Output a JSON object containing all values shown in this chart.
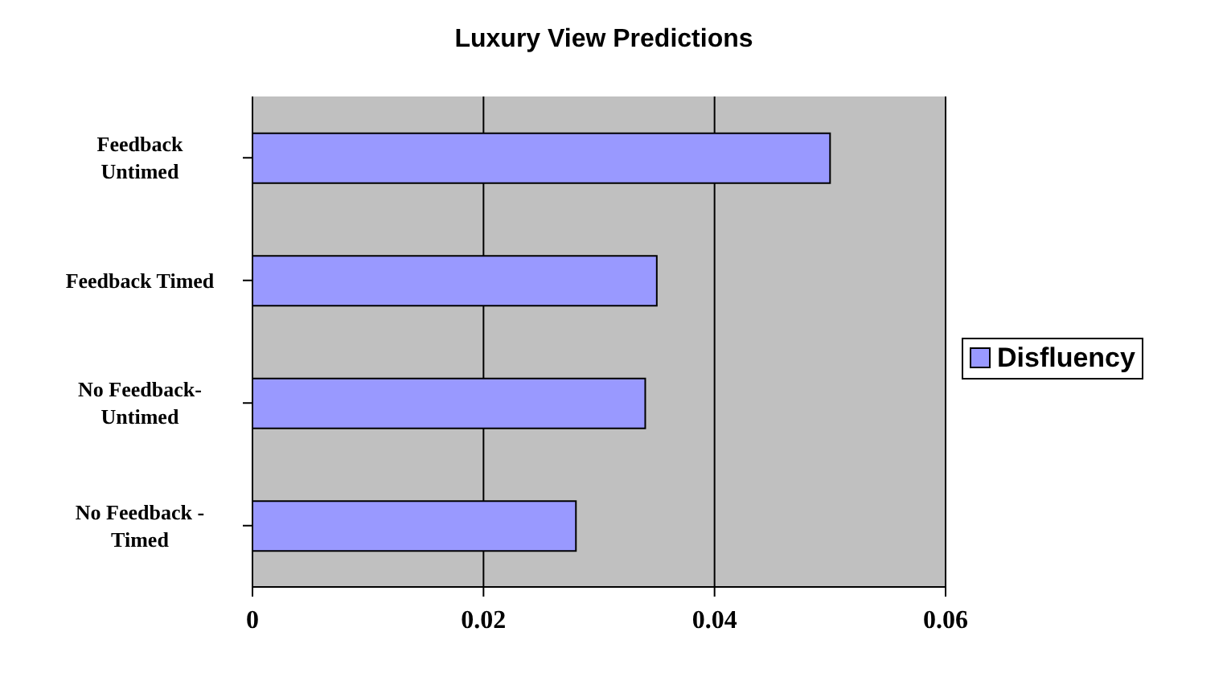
{
  "chart_data": {
    "type": "bar",
    "orientation": "horizontal",
    "title": "Luxury View Predictions",
    "categories": [
      "Feedback Untimed",
      "Feedback Timed",
      "No Feedback-Untimed",
      "No Feedback - Timed"
    ],
    "series": [
      {
        "name": "Disfluency",
        "color": "#9999ff",
        "values": [
          0.05,
          0.035,
          0.034,
          0.028
        ]
      }
    ],
    "xlim": [
      0,
      0.06
    ],
    "xticks": [
      0,
      0.02,
      0.04,
      0.06
    ],
    "grid": "x",
    "legend": "right"
  }
}
